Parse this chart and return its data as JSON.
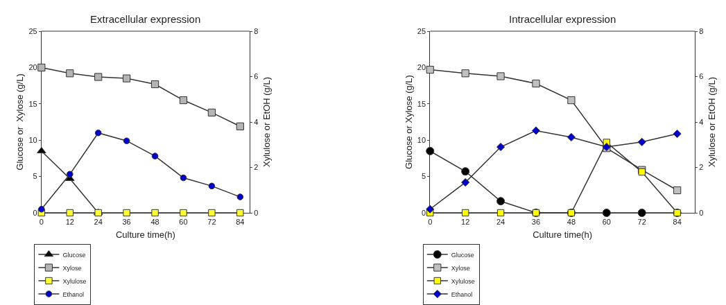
{
  "chart_data": [
    {
      "type": "line",
      "title": "Extracellular expression",
      "xlabel": "Culture time(h)",
      "ylabel": "Glucose or  Xylose (g/L)",
      "y2label": "Xylulose or EtOH (g/L)",
      "x": [
        0,
        12,
        24,
        36,
        48,
        60,
        72,
        84
      ],
      "xlim": [
        0,
        88
      ],
      "xticks": [
        0,
        12,
        24,
        36,
        48,
        60,
        72,
        84
      ],
      "ylim": [
        0,
        25
      ],
      "yticks": [
        0,
        5,
        10,
        15,
        20,
        25
      ],
      "y2lim": [
        0,
        8
      ],
      "y2ticks": [
        0,
        2,
        4,
        6,
        8
      ],
      "legend": "bottom left",
      "series": [
        {
          "name": "Glucose",
          "color": "#000000",
          "marker": "triangle",
          "x": [
            0,
            12,
            24
          ],
          "values": [
            8.5,
            4.7,
            0
          ]
        },
        {
          "name": "Xylose",
          "color": "#b4b4b4",
          "marker": "square",
          "values": [
            20,
            19.2,
            18.7,
            18.5,
            17.7,
            15.5,
            13.8,
            11.9
          ]
        },
        {
          "name": "Xylulose",
          "color": "#ffff33",
          "marker": "square",
          "axis": "y2",
          "values": [
            0,
            0,
            0,
            0,
            0,
            0,
            0,
            0
          ]
        },
        {
          "name": "Ethanol",
          "color": "#0000cc",
          "marker": "circle",
          "axis": "y2",
          "values": [
            0.16,
            1.7,
            3.52,
            3.17,
            2.5,
            1.54,
            1.18,
            0.7
          ]
        }
      ]
    },
    {
      "type": "line",
      "title": "Intracellular expression",
      "xlabel": "Culture time(h)",
      "ylabel": "Glucose or Xylose (g/L)",
      "y2label": "Xylulose or EtOH (g/L)",
      "x": [
        0,
        12,
        24,
        36,
        48,
        60,
        72,
        84
      ],
      "xlim": [
        0,
        90
      ],
      "xticks": [
        0,
        12,
        24,
        36,
        48,
        60,
        72,
        84
      ],
      "ylim": [
        0,
        25
      ],
      "yticks": [
        0,
        5,
        10,
        15,
        20,
        25
      ],
      "y2lim": [
        0,
        8
      ],
      "y2ticks": [
        0,
        2,
        4,
        6,
        8
      ],
      "legend": "bottom left",
      "series": [
        {
          "name": "Glucose",
          "color": "#000000",
          "marker": "circle",
          "values": [
            8.5,
            5.7,
            1.6,
            0,
            0,
            0,
            0,
            0
          ]
        },
        {
          "name": "Xylose",
          "color": "#c0c0c0",
          "marker": "square",
          "values": [
            19.7,
            19.2,
            18.8,
            17.8,
            15.5,
            8.9,
            5.9,
            3.1
          ]
        },
        {
          "name": "Xylulose",
          "color": "#ffff00",
          "marker": "square",
          "axis": "y2",
          "values": [
            0,
            0,
            0,
            0,
            0,
            3.1,
            1.8,
            0
          ]
        },
        {
          "name": "Ethanol",
          "color": "#0000cc",
          "marker": "diamond",
          "axis": "y2",
          "values": [
            0.16,
            1.34,
            2.9,
            3.62,
            3.33,
            2.9,
            3.12,
            3.48
          ]
        }
      ]
    }
  ]
}
